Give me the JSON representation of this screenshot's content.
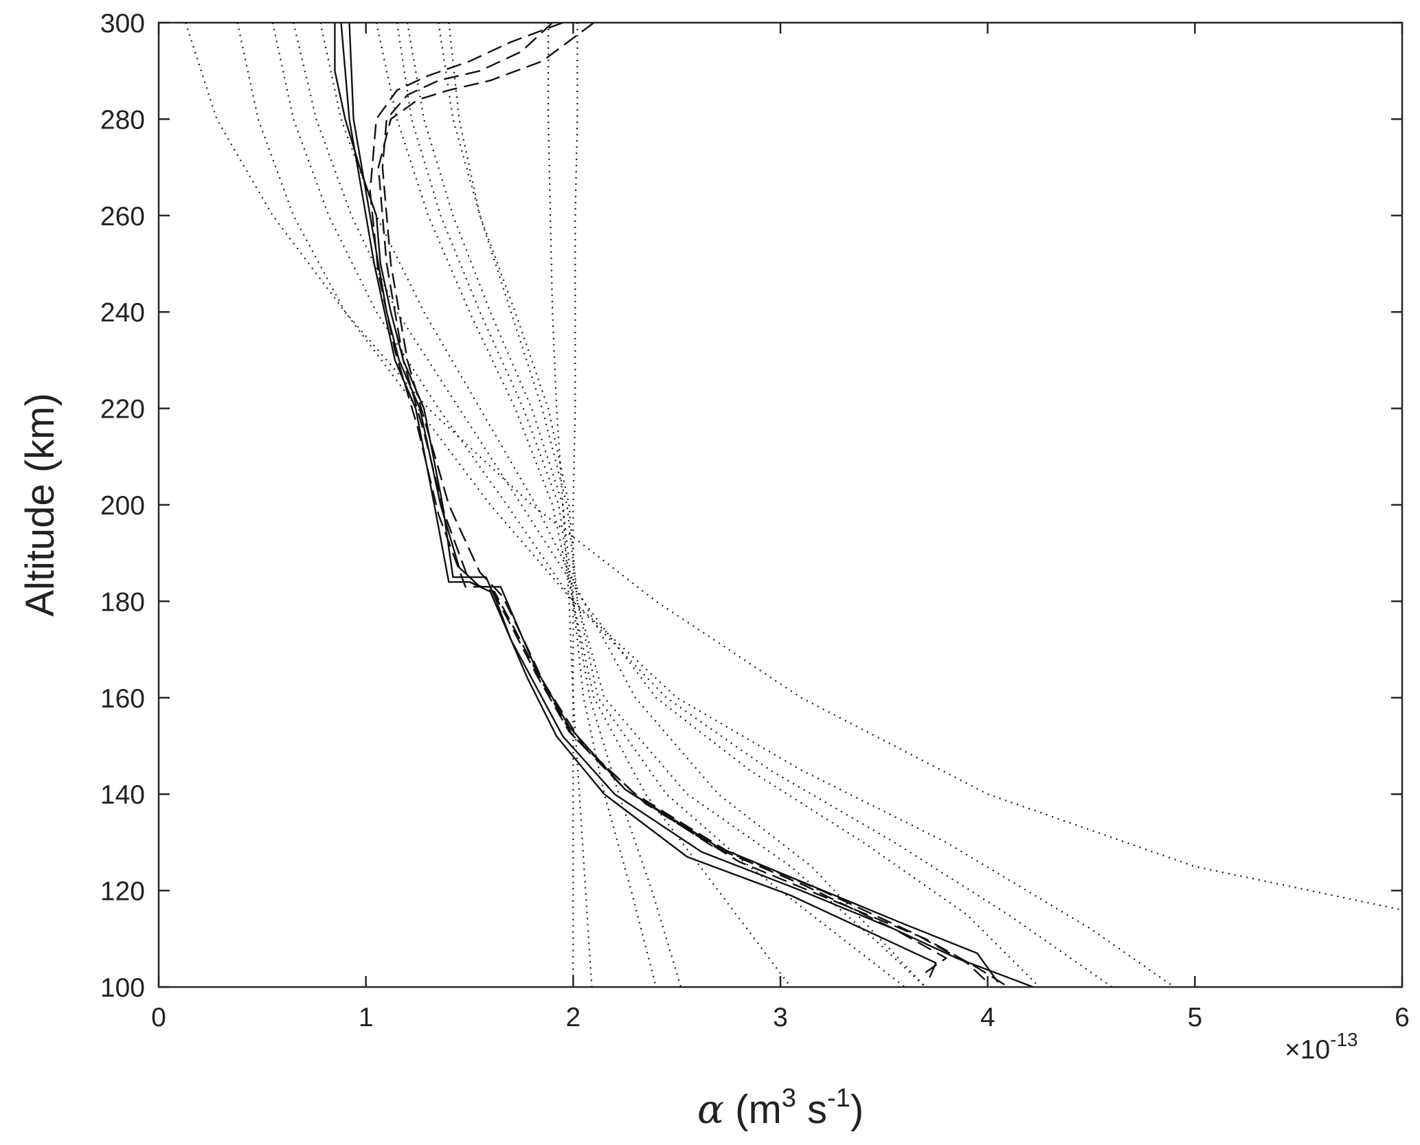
{
  "chart_data": {
    "type": "line",
    "title": "",
    "xlabel": "α (m³ s⁻¹)",
    "xlabel_parts": {
      "symbol": "α",
      "open": " (m",
      "sup1": "3",
      "mid": " s",
      "sup2": "-1",
      "close": ")"
    },
    "ylabel": "Altitude (km)",
    "x_multiplier": {
      "prefix": "×10",
      "exponent": "-13"
    },
    "xlim": [
      0,
      6
    ],
    "ylim": [
      100,
      300
    ],
    "xticks": [
      0,
      1,
      2,
      3,
      4,
      5,
      6
    ],
    "yticks": [
      100,
      120,
      140,
      160,
      180,
      200,
      220,
      240,
      260,
      280,
      300
    ],
    "grid": false,
    "legend": "none",
    "series": [
      {
        "name": "dotted-a",
        "style": "dotted",
        "x": [
          0.13,
          0.28,
          0.55,
          0.9,
          1.3,
          1.8,
          2.4,
          3.1,
          4.0,
          5.0,
          6.0
        ],
        "y": [
          300,
          280,
          260,
          240,
          220,
          200,
          180,
          160,
          140,
          125,
          116
        ]
      },
      {
        "name": "dotted-b",
        "style": "dotted",
        "x": [
          0.38,
          0.48,
          0.65,
          0.9,
          1.25,
          1.6,
          2.0,
          2.5,
          3.1,
          3.8,
          4.5,
          4.9
        ],
        "y": [
          300,
          280,
          260,
          240,
          220,
          200,
          180,
          160,
          145,
          130,
          112,
          100
        ]
      },
      {
        "name": "dotted-c",
        "style": "dotted",
        "x": [
          0.55,
          0.65,
          0.82,
          1.05,
          1.35,
          1.68,
          2.0,
          2.45,
          2.95,
          3.55,
          4.1,
          4.6
        ],
        "y": [
          300,
          280,
          260,
          240,
          220,
          200,
          180,
          160,
          145,
          130,
          115,
          100
        ]
      },
      {
        "name": "dotted-d",
        "style": "dotted",
        "x": [
          0.65,
          0.76,
          0.93,
          1.15,
          1.45,
          1.75,
          2.05,
          2.4,
          2.85,
          3.4,
          3.9,
          4.25
        ],
        "y": [
          300,
          280,
          260,
          240,
          220,
          200,
          180,
          160,
          145,
          130,
          115,
          100
        ]
      },
      {
        "name": "dotted-e",
        "style": "dotted",
        "x": [
          0.78,
          0.88,
          1.05,
          1.28,
          1.55,
          1.82,
          2.05,
          2.3,
          2.7,
          3.15,
          3.7
        ],
        "y": [
          300,
          280,
          260,
          240,
          220,
          200,
          180,
          160,
          140,
          125,
          100
        ]
      },
      {
        "name": "dotted-f",
        "style": "dotted",
        "x": [
          1.4,
          1.45,
          1.55,
          1.7,
          1.85,
          1.97,
          2.02,
          2.15,
          2.55,
          3.05,
          3.45,
          3.7
        ],
        "y": [
          300,
          280,
          260,
          240,
          220,
          200,
          180,
          160,
          140,
          125,
          110,
          100
        ]
      },
      {
        "name": "dotted-g",
        "style": "dotted",
        "x": [
          1.35,
          1.42,
          1.55,
          1.72,
          1.88,
          1.98,
          2.02,
          2.12,
          2.45,
          2.85,
          3.3,
          3.6
        ],
        "y": [
          300,
          280,
          260,
          240,
          220,
          200,
          180,
          160,
          140,
          125,
          110,
          100
        ]
      },
      {
        "name": "dotted-h",
        "style": "dotted",
        "x": [
          1.05,
          1.15,
          1.3,
          1.5,
          1.72,
          1.9,
          2.0,
          2.1,
          2.35,
          2.7,
          3.05
        ],
        "y": [
          300,
          280,
          260,
          240,
          220,
          200,
          180,
          160,
          140,
          120,
          100
        ]
      },
      {
        "name": "dotted-i",
        "style": "dotted",
        "x": [
          2.02,
          2.02,
          2.01,
          2.01,
          2.01,
          2.0,
          2.0,
          2.0,
          2.0,
          2.0,
          2.0
        ],
        "y": [
          300,
          280,
          260,
          240,
          220,
          200,
          180,
          160,
          140,
          120,
          100
        ]
      },
      {
        "name": "dotted-j",
        "style": "dotted",
        "x": [
          1.88,
          1.88,
          1.89,
          1.9,
          1.92,
          1.95,
          1.98,
          2.0,
          2.03,
          2.06,
          2.09
        ],
        "y": [
          300,
          280,
          260,
          240,
          220,
          200,
          180,
          160,
          140,
          120,
          100
        ]
      },
      {
        "name": "dotted-k",
        "style": "dotted",
        "x": [
          1.2,
          1.28,
          1.42,
          1.6,
          1.8,
          1.95,
          2.0,
          2.05,
          2.15,
          2.28,
          2.4
        ],
        "y": [
          300,
          280,
          260,
          240,
          220,
          200,
          180,
          160,
          140,
          120,
          100
        ]
      },
      {
        "name": "dotted-l",
        "style": "dotted",
        "x": [
          1.15,
          1.22,
          1.36,
          1.55,
          1.76,
          1.93,
          2.0,
          2.08,
          2.22,
          2.38,
          2.52
        ],
        "y": [
          300,
          280,
          260,
          240,
          220,
          200,
          180,
          160,
          140,
          120,
          100
        ]
      },
      {
        "name": "solid-main",
        "style": "solid",
        "x": [
          0.85,
          0.85,
          0.9,
          0.97,
          1.05,
          1.07,
          1.12,
          1.18,
          1.28,
          1.37,
          1.42,
          1.58,
          1.63,
          1.7,
          1.8,
          1.95,
          2.2,
          2.62,
          3.1,
          3.55,
          3.85,
          4.22
        ],
        "y": [
          300,
          290,
          280,
          270,
          260,
          250,
          240,
          230,
          220,
          200,
          185,
          185,
          180,
          172,
          164,
          152,
          140,
          128,
          120,
          112,
          106,
          100
        ]
      },
      {
        "name": "solid-b",
        "style": "solid",
        "x": [
          0.92,
          0.94,
          0.98,
          1.02,
          1.06,
          1.1,
          1.16,
          1.26,
          1.36,
          1.45,
          1.55,
          1.65,
          1.72,
          1.82,
          1.98,
          2.25,
          2.7,
          3.15,
          3.6,
          3.95,
          4.05
        ],
        "y": [
          300,
          280,
          270,
          260,
          250,
          240,
          230,
          220,
          200,
          187,
          183,
          183,
          176,
          166,
          154,
          141,
          129,
          121,
          113,
          107,
          101
        ]
      },
      {
        "name": "solid-c",
        "style": "solid",
        "x": [
          0.88,
          0.92,
          0.96,
          1.0,
          1.04,
          1.09,
          1.14,
          1.24,
          1.33,
          1.4,
          1.5,
          1.6,
          1.68,
          1.78,
          1.92,
          2.15,
          2.55,
          3.05,
          3.45,
          3.75,
          3.72
        ],
        "y": [
          300,
          280,
          270,
          260,
          250,
          240,
          230,
          220,
          200,
          184,
          184,
          182,
          174,
          164,
          152,
          140,
          127,
          119,
          111,
          105,
          102
        ]
      },
      {
        "name": "dashed-a",
        "style": "dashed",
        "x": [
          1.9,
          1.75,
          1.55,
          1.35,
          1.2,
          1.1,
          1.08,
          1.12,
          1.2,
          1.3,
          1.4,
          1.55,
          1.66,
          1.75,
          1.86,
          2.05,
          2.35,
          2.8,
          3.25,
          3.7,
          3.95,
          4.1
        ],
        "y": [
          300,
          294,
          290,
          288,
          285,
          280,
          270,
          250,
          230,
          215,
          200,
          186,
          181,
          173,
          163,
          150,
          138,
          126,
          118,
          110,
          104,
          100
        ]
      },
      {
        "name": "dashed-b",
        "style": "dashed",
        "x": [
          2.1,
          1.85,
          1.6,
          1.4,
          1.25,
          1.12,
          1.06,
          1.1,
          1.18,
          1.28,
          1.38,
          1.5,
          1.62,
          1.72,
          1.84,
          2.0,
          2.3,
          2.75,
          3.2,
          3.65,
          3.9,
          4.0
        ],
        "y": [
          300,
          292,
          288,
          286,
          284,
          280,
          270,
          250,
          230,
          215,
          198,
          184,
          182,
          174,
          164,
          152,
          140,
          128,
          120,
          111,
          105,
          101
        ]
      },
      {
        "name": "dashed-c",
        "style": "dashed",
        "x": [
          1.95,
          1.7,
          1.5,
          1.3,
          1.15,
          1.05,
          1.02,
          1.06,
          1.14,
          1.25,
          1.35,
          1.48,
          1.6,
          1.7,
          1.82,
          1.98,
          2.25,
          2.68,
          3.12,
          3.55,
          3.8,
          3.7
        ],
        "y": [
          300,
          296,
          292,
          289,
          286,
          280,
          265,
          248,
          232,
          216,
          198,
          183,
          183,
          175,
          165,
          153,
          141,
          129,
          121,
          112,
          106,
          103
        ]
      }
    ]
  }
}
